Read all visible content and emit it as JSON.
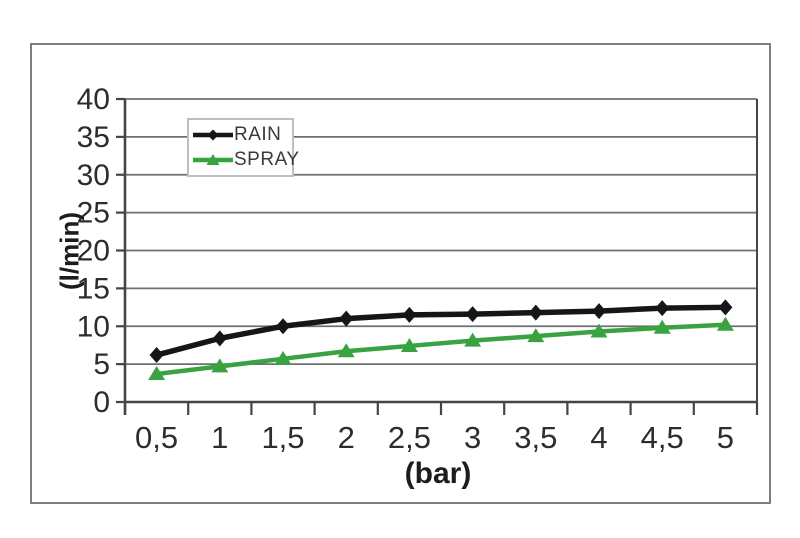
{
  "chart_data": {
    "type": "line",
    "title": "",
    "xlabel": "(bar)",
    "ylabel": "(l/min)",
    "x_values": [
      0.5,
      1,
      1.5,
      2,
      2.5,
      3,
      3.5,
      4,
      4.5,
      5
    ],
    "x_tick_labels": [
      "0,5",
      "1",
      "1,5",
      "2",
      "2,5",
      "3",
      "3,5",
      "4",
      "4,5",
      "5"
    ],
    "y_tick_labels": [
      "0",
      "5",
      "10",
      "15",
      "20",
      "25",
      "30",
      "35",
      "40"
    ],
    "ylim": [
      0,
      40
    ],
    "ytick_step": 5,
    "grid": "horizontal",
    "legend_position": "top-left-inside",
    "series": [
      {
        "name": "RAIN",
        "marker": "diamond",
        "color": "#161616",
        "values": [
          6.2,
          8.4,
          10.0,
          11.0,
          11.5,
          11.6,
          11.8,
          12.0,
          12.4,
          12.5
        ]
      },
      {
        "name": "SPRAY",
        "marker": "triangle",
        "color": "#3aa341",
        "values": [
          3.7,
          4.7,
          5.7,
          6.7,
          7.4,
          8.1,
          8.7,
          9.3,
          9.8,
          10.2
        ]
      }
    ]
  },
  "colors": {
    "background": "#ffffff",
    "frame_border": "#7e7e7e",
    "grid_line": "#6f6f6f",
    "axis_line": "#454545",
    "tick_text": "#2d2d2d",
    "axis_title_text": "#1c1c1c",
    "legend_border": "#bfbfbf",
    "legend_text": "#3a3a3a"
  }
}
